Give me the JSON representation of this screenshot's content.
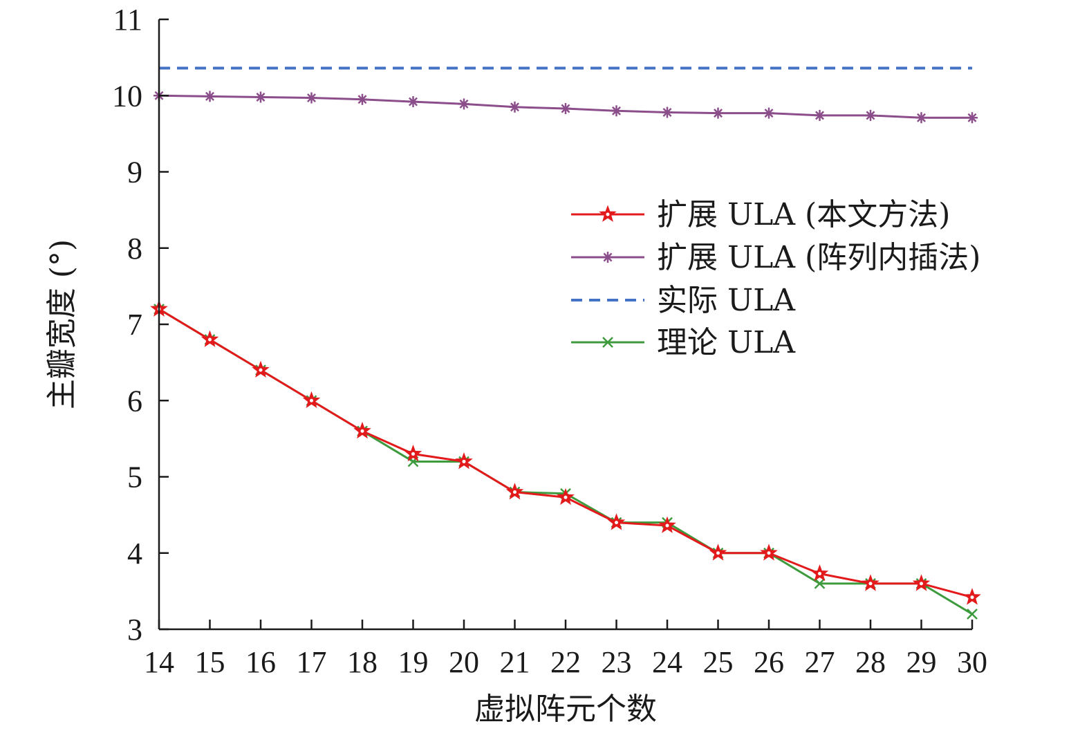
{
  "chart_data": {
    "type": "line",
    "xlabel": "虚拟阵元个数",
    "ylabel": "主瓣宽度 (°)",
    "xlim": [
      14,
      30
    ],
    "ylim": [
      3,
      11
    ],
    "x": [
      14,
      15,
      16,
      17,
      18,
      19,
      20,
      21,
      22,
      23,
      24,
      25,
      26,
      27,
      28,
      29,
      30
    ],
    "xticks": [
      "14",
      "15",
      "16",
      "17",
      "18",
      "19",
      "20",
      "21",
      "22",
      "23",
      "24",
      "25",
      "26",
      "27",
      "28",
      "29",
      "30"
    ],
    "yticks": [
      "3",
      "4",
      "5",
      "6",
      "7",
      "8",
      "9",
      "10",
      "11"
    ],
    "legend_position": "right",
    "series": [
      {
        "name": "扩展 ULA (本文方法)",
        "color": "#e31a1c",
        "marker": "star",
        "values": [
          7.2,
          6.8,
          6.4,
          6.0,
          5.6,
          5.3,
          5.2,
          4.8,
          4.73,
          4.4,
          4.36,
          4.0,
          4.0,
          3.73,
          3.6,
          3.6,
          3.42
        ]
      },
      {
        "name": "扩展 ULA (阵列内插法)",
        "color": "#8b4e8b",
        "marker": "asterisk",
        "values": [
          10.0,
          9.99,
          9.98,
          9.97,
          9.95,
          9.92,
          9.89,
          9.85,
          9.83,
          9.8,
          9.78,
          9.77,
          9.77,
          9.74,
          9.74,
          9.71,
          9.71
        ]
      },
      {
        "name": "实际 ULA",
        "color": "#4472c4",
        "marker": "none",
        "dashed": true,
        "values": [
          10.36,
          10.36,
          10.36,
          10.36,
          10.36,
          10.36,
          10.36,
          10.36,
          10.36,
          10.36,
          10.36,
          10.36,
          10.36,
          10.36,
          10.36,
          10.36,
          10.36
        ]
      },
      {
        "name": "理论 ULA",
        "color": "#3d9a3d",
        "marker": "x",
        "values": [
          7.2,
          6.8,
          6.4,
          6.0,
          5.6,
          5.2,
          5.2,
          4.8,
          4.78,
          4.4,
          4.4,
          4.0,
          4.0,
          3.6,
          3.6,
          3.6,
          3.2
        ]
      }
    ]
  }
}
